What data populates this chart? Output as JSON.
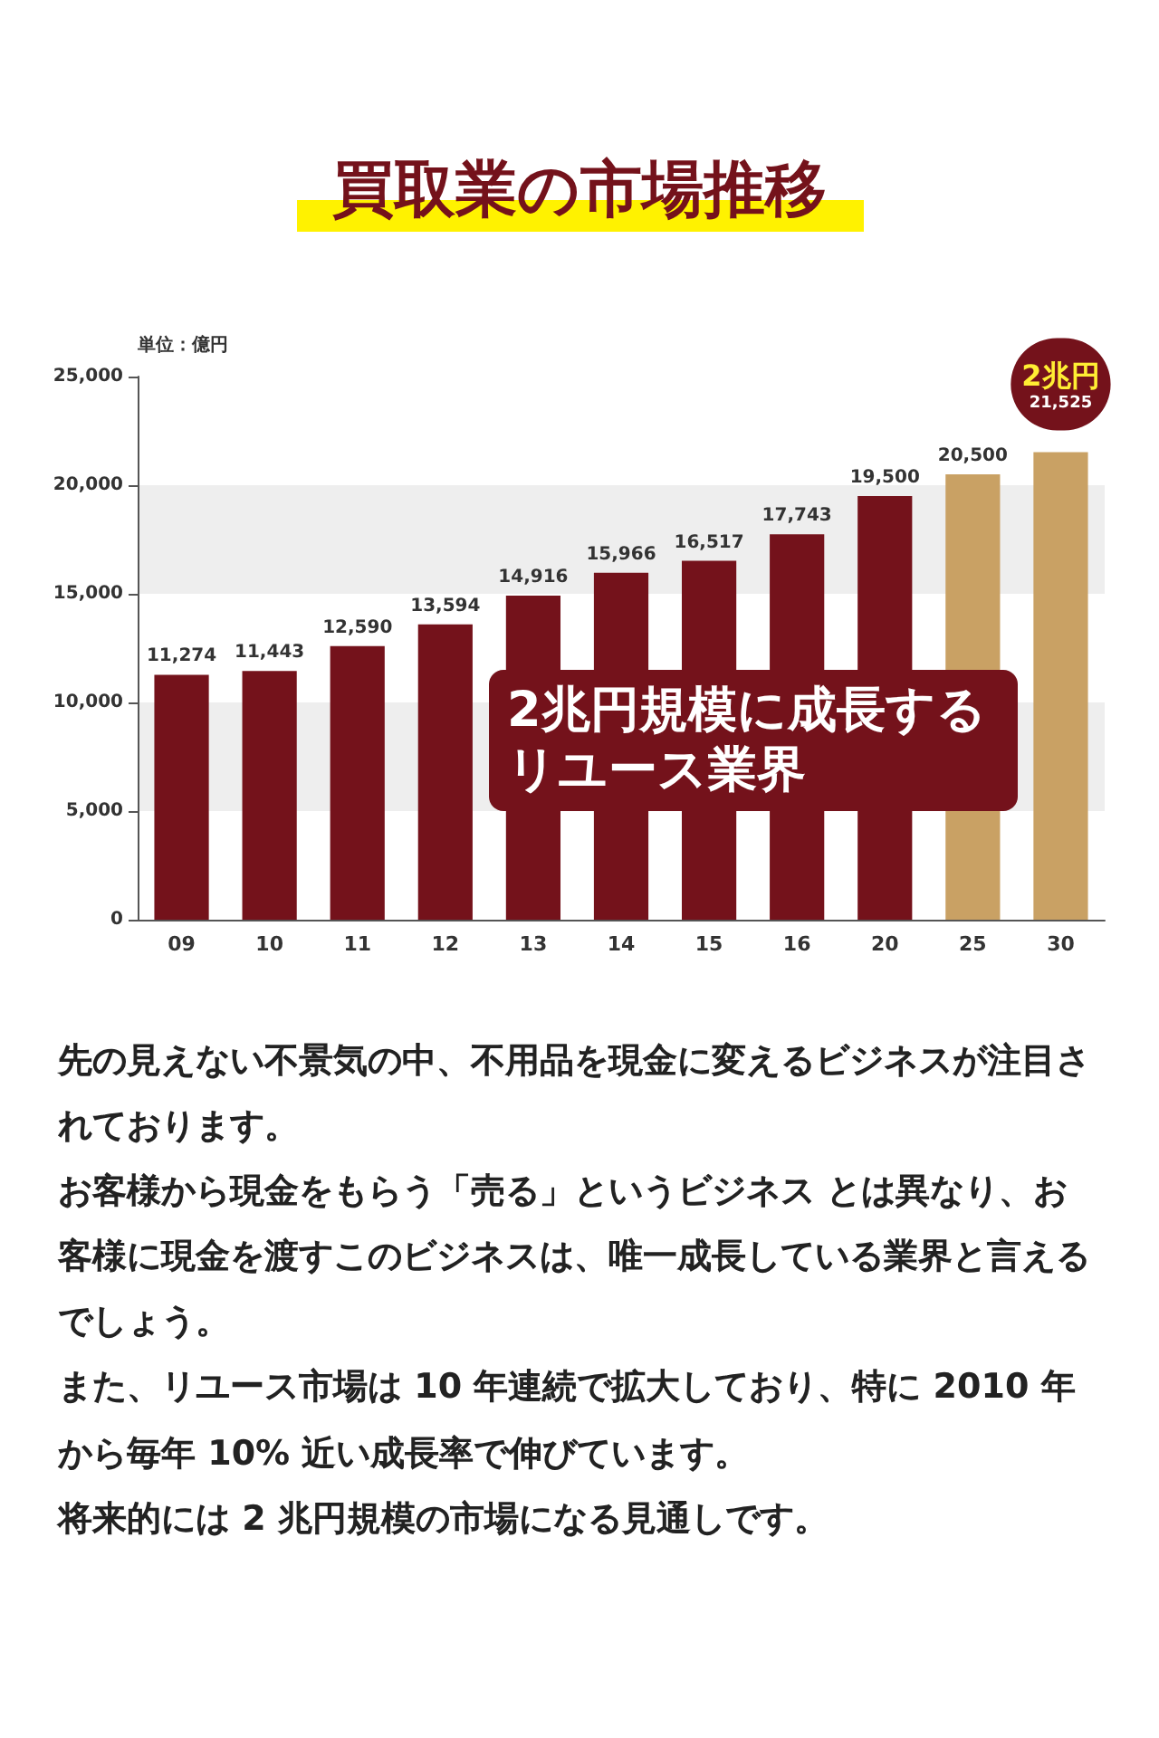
{
  "chart_data": {
    "type": "bar",
    "title": "買取業の市場推移",
    "ylabel": "単位：億円",
    "categories": [
      "09",
      "10",
      "11",
      "12",
      "13",
      "14",
      "15",
      "16",
      "20",
      "25",
      "30"
    ],
    "values": [
      11274,
      11443,
      12590,
      13594,
      14916,
      15966,
      16517,
      17743,
      19500,
      20500,
      21525
    ],
    "value_labels": [
      "11,274",
      "11,443",
      "12,590",
      "13,594",
      "14,916",
      "15,966",
      "16,517",
      "17,743",
      "19,500",
      "20,500",
      "21,525"
    ],
    "colors": [
      "#74121b",
      "#74121b",
      "#74121b",
      "#74121b",
      "#74121b",
      "#74121b",
      "#74121b",
      "#74121b",
      "#74121b",
      "#c9a164",
      "#c9a164"
    ],
    "ylim": [
      0,
      25000
    ],
    "yticks": [
      0,
      {
        "value": 5000,
        "label": "5,000"
      },
      {
        "value": 10000,
        "label": "10,000"
      },
      {
        "value": 15000,
        "label": "15,000"
      },
      {
        "value": 20000,
        "label": "20,000"
      },
      {
        "value": 25000,
        "label": "25,000"
      }
    ],
    "bands": [
      {
        "axis": "y",
        "from": 5000,
        "to": 10000,
        "color": "#eeeeee"
      },
      {
        "axis": "y",
        "from": 15000,
        "to": 20000,
        "color": "#eeeeee"
      }
    ],
    "annotations": [
      {
        "text": "2兆円",
        "x": "30",
        "y": 21525
      },
      "2兆円規模に成長するリユース業界",
      "先の見えない不景気の中、不用品を現金に変えるビジネスが注目されております。",
      "お客様から現金をもらう「売る」というビジネス とは異なり、お客様に現金を渡すこのビジネスは、唯一成長している業界と言えるでしょう。",
      "また、リユース市場は 10 年連続で拡大しており、特に 2010 年から毎年 10% 近い成長率で伸びています。",
      "将来的には 2 兆円規模の市場になる見通しです。"
    ]
  }
}
